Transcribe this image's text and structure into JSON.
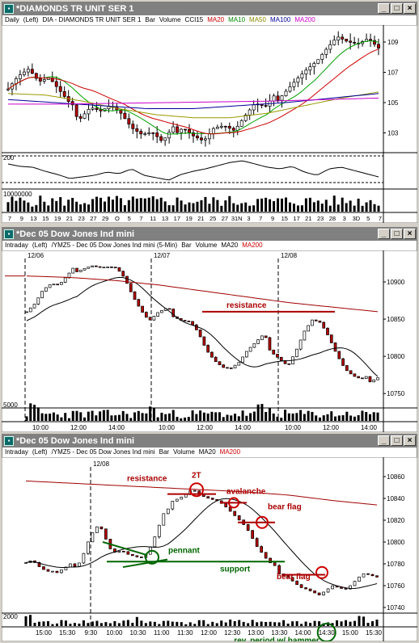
{
  "panel1": {
    "title": "*DIAMONDS TR UNIT SER 1",
    "legend": [
      {
        "text": "Daily",
        "color": "#000000"
      },
      {
        "text": "(Left)",
        "color": "#000000"
      },
      {
        "text": "DIA - DIAMONDS TR UNIT SER 1",
        "color": "#000000"
      },
      {
        "text": "Bar",
        "color": "#000000"
      },
      {
        "text": "Volume",
        "color": "#000000"
      },
      {
        "text": "CCI15",
        "color": "#000000"
      },
      {
        "text": "MA20",
        "color": "#cc0000"
      },
      {
        "text": "MA10",
        "color": "#008800"
      },
      {
        "text": "MA50",
        "color": "#888800"
      },
      {
        "text": "MA100",
        "color": "#000099"
      },
      {
        "text": "MA200",
        "color": "#cc00cc"
      }
    ],
    "y_labels": [
      "109",
      "107",
      "105",
      "103"
    ],
    "cci_label": "200",
    "vol_label": "10000000",
    "x_labels": [
      "7",
      "9",
      "13",
      "15",
      "19",
      "21",
      "23",
      "27",
      "29",
      "O",
      "5",
      "7",
      "11",
      "13",
      "17",
      "19",
      "21",
      "25",
      "27",
      "31N",
      "3",
      "7",
      "9",
      "15",
      "17",
      "21",
      "23",
      "28",
      "3",
      "3D",
      "5",
      "7"
    ]
  },
  "panel2": {
    "title": "*Dec 05  Dow Jones Ind mini",
    "legend": [
      {
        "text": "Intraday",
        "color": "#000000"
      },
      {
        "text": "(Left)",
        "color": "#000000"
      },
      {
        "text": "/YMZ5 - Dec 05  Dow Jones Ind mini (5-Min)",
        "color": "#000000"
      },
      {
        "text": "Bar",
        "color": "#000000"
      },
      {
        "text": "Volume",
        "color": "#000000"
      },
      {
        "text": "MA20",
        "color": "#000000"
      },
      {
        "text": "MA200",
        "color": "#cc0000"
      }
    ],
    "date_labels": [
      "12/06",
      "12/07",
      "12/08"
    ],
    "y_labels": [
      "10900",
      "10850",
      "10800",
      "10750"
    ],
    "vol_label": "5000",
    "x_labels": [
      "10:00",
      "12:00",
      "14:00",
      "10:00",
      "12:00",
      "14:00",
      "10:00",
      "12:00",
      "14:00"
    ],
    "annotation": "resistance"
  },
  "panel3": {
    "title": "*Dec 05  Dow Jones Ind mini",
    "legend": [
      {
        "text": "Intraday",
        "color": "#000000"
      },
      {
        "text": "(Left)",
        "color": "#000000"
      },
      {
        "text": "/YMZ5 - Dec 05  Dow Jones Ind mini",
        "color": "#000000"
      },
      {
        "text": "Bar",
        "color": "#000000"
      },
      {
        "text": "Volume",
        "color": "#000000"
      },
      {
        "text": "MA20",
        "color": "#000000"
      },
      {
        "text": "MA200",
        "color": "#cc0000"
      }
    ],
    "date_label": "12/08",
    "y_labels": [
      "10860",
      "10840",
      "10820",
      "10800",
      "10780",
      "10760",
      "10740"
    ],
    "vol_label": "2000",
    "x_labels": [
      "15:00",
      "15:30",
      "9:30",
      "10:00",
      "10:30",
      "11:00",
      "11:30",
      "12:00",
      "12:30",
      "13:00",
      "13:30",
      "14:00",
      "14:30",
      "15:00",
      "15:30"
    ],
    "annotations": {
      "resistance": "resistance",
      "two_t": "2T",
      "avalanche": "avalanche",
      "bear_flag_1": "bear flag",
      "pennant": "pennant",
      "support": "support",
      "bear_flag_2": "bear flag",
      "footer": "rev. period w/ hammer"
    }
  }
}
